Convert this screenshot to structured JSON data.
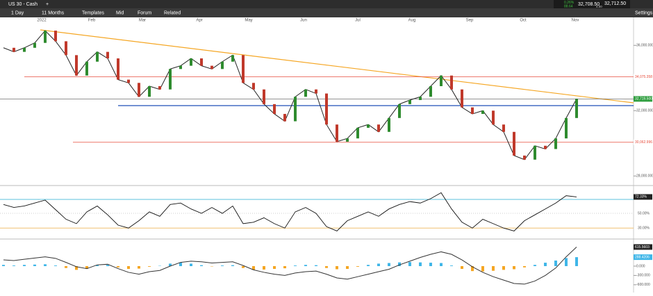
{
  "header": {
    "title": "US 30 - Cash",
    "change_pct": "0.26%",
    "change_abs": "88.64",
    "bid": "32,708.50",
    "spread": "4.00",
    "ask": "32,712.50"
  },
  "toolbar": {
    "interval": "1 Day",
    "range": "11 Months",
    "templates": "Templates",
    "price_type": "Mid",
    "forum": "Forum",
    "related": "Related",
    "settings": "Settings"
  },
  "price_chart": {
    "months": [
      "2022",
      "Feb",
      "Mar",
      "Apr",
      "May",
      "Jun",
      "Jul",
      "Aug",
      "Sep",
      "Oct",
      "Nov"
    ],
    "values": [
      35850,
      35600,
      35850,
      36150,
      36900,
      36250,
      35400,
      34150,
      35000,
      35600,
      35200,
      33900,
      33700,
      32850,
      33500,
      33300,
      34550,
      34750,
      35200,
      34750,
      34550,
      35000,
      35400,
      33700,
      33300,
      32400,
      31800,
      31350,
      32850,
      33300,
      33050,
      31150,
      30100,
      30300,
      30950,
      31150,
      30700,
      31550,
      32400,
      32650,
      32850,
      33500,
      34150,
      33300,
      32200,
      31800,
      32000,
      31150,
      30700,
      29250,
      29000,
      29850,
      29650,
      30300,
      31550,
      32719.5
    ],
    "ylim": [
      27500,
      37500
    ],
    "yticks": [
      {
        "value": 36000,
        "label": "36,000.000"
      },
      {
        "value": 32000,
        "label": "32,000.000"
      },
      {
        "value": 28000,
        "label": "28,000.000"
      }
    ],
    "levels": [
      {
        "value": 34075.358,
        "label": "34,075.358"
      },
      {
        "value": 30062.996,
        "label": "30,062.996"
      }
    ],
    "last": {
      "value": 32719.5,
      "label": "32,719.500"
    }
  },
  "rsi": {
    "values": [
      62,
      58,
      60,
      64,
      68,
      55,
      42,
      36,
      52,
      60,
      48,
      34,
      30,
      40,
      52,
      46,
      62,
      64,
      56,
      50,
      58,
      50,
      60,
      36,
      38,
      44,
      36,
      30,
      52,
      58,
      50,
      32,
      26,
      40,
      46,
      52,
      46,
      56,
      62,
      66,
      64,
      70,
      78,
      56,
      38,
      30,
      42,
      36,
      30,
      26,
      40,
      48,
      56,
      64,
      74,
      72.33
    ],
    "ylim": [
      17,
      85
    ],
    "yticks": [
      {
        "value": 50,
        "label": "50.00%"
      },
      {
        "value": 30,
        "label": "30.00%"
      }
    ],
    "last": {
      "value": 72.33,
      "label": "72.33%"
    }
  },
  "macd": {
    "macd": [
      200,
      180,
      220,
      260,
      300,
      250,
      120,
      -20,
      -80,
      40,
      60,
      -80,
      -200,
      -260,
      -180,
      -140,
      0,
      120,
      160,
      140,
      100,
      120,
      140,
      20,
      -120,
      -200,
      -260,
      -300,
      -220,
      -180,
      -160,
      -260,
      -380,
      -420,
      -340,
      -260,
      -180,
      -100,
      40,
      160,
      280,
      380,
      460,
      380,
      200,
      -20,
      -200,
      -340,
      -450,
      -560,
      -580,
      -480,
      -300,
      -60,
      300,
      615.5603
    ],
    "histogram": [
      40,
      20,
      40,
      50,
      60,
      20,
      -60,
      -120,
      -90,
      30,
      40,
      -40,
      -90,
      -80,
      -20,
      10,
      80,
      110,
      80,
      30,
      -10,
      20,
      30,
      -60,
      -120,
      -110,
      -90,
      -70,
      20,
      40,
      30,
      -60,
      -100,
      -90,
      -20,
      40,
      80,
      100,
      120,
      130,
      120,
      110,
      100,
      20,
      -90,
      -160,
      -170,
      -150,
      -120,
      -100,
      -40,
      40,
      110,
      180,
      260,
      288.4206
    ],
    "ylim": [
      -850,
      850
    ],
    "yticks": [
      {
        "value": 0,
        "label": "0.000"
      },
      {
        "value": -300,
        "label": "-300.000"
      },
      {
        "value": -600,
        "label": "-600.000"
      }
    ],
    "last_macd": {
      "value": 615.5603,
      "label": "615.5603"
    },
    "last_hist": {
      "value": 288.4206,
      "label": "288.4206"
    }
  }
}
